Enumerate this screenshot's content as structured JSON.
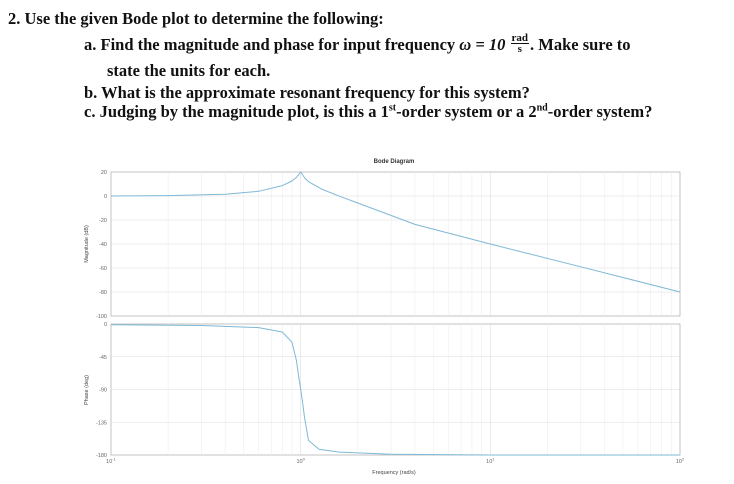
{
  "question": {
    "number": "2.",
    "prompt": "Use the given Bode plot to determine the following:",
    "a_letter": "a.",
    "a_text_before": "Find the magnitude and phase for input frequency ",
    "a_omega": "ω = 10",
    "a_unit_num": "rad",
    "a_unit_den": "s",
    "a_text_after": ". Make sure to",
    "a_text_line2": "state the units for each.",
    "b_letter": "b.",
    "b_text": "What is the approximate resonant frequency for this system?",
    "c_letter": "c.",
    "c_text_1": "Judging by the magnitude plot, is this a 1",
    "c_sup_1": "st",
    "c_text_2": "-order system or a 2",
    "c_sup_2": "nd",
    "c_text_3": "-order system?"
  },
  "chart_data": {
    "type": "line",
    "title": "Bode Diagram",
    "xlabel": "Frequency (rad/s)",
    "xscale": "log",
    "xlim": [
      0.1,
      100
    ],
    "x_tick_labels": [
      "10^-1",
      "10^0",
      "10^1",
      "10^2"
    ],
    "grid": true,
    "line_color": "#7fb8d6",
    "magnitude": {
      "ylabel": "Magnitude (dB)",
      "ylim": [
        -100,
        20
      ],
      "y_ticks": [
        20,
        0,
        -20,
        -40,
        -60,
        -80,
        -100
      ],
      "x": [
        0.1,
        0.2,
        0.4,
        0.6,
        0.8,
        0.9,
        0.95,
        1.0,
        1.05,
        1.1,
        1.3,
        1.6,
        2,
        4,
        10,
        30,
        100
      ],
      "y": [
        0,
        0.3,
        1.5,
        3.9,
        8.7,
        12.5,
        15.5,
        20,
        15,
        11.9,
        5.5,
        -0.2,
        -5.8,
        -23.7,
        -40,
        -59,
        -80
      ]
    },
    "phase": {
      "ylabel": "Phase (deg)",
      "ylim": [
        -180,
        0
      ],
      "y_ticks": [
        0,
        -45,
        -90,
        -135,
        -180
      ],
      "x": [
        0.1,
        0.3,
        0.6,
        0.8,
        0.9,
        0.95,
        0.98,
        1.0,
        1.02,
        1.05,
        1.1,
        1.25,
        1.6,
        3,
        10,
        100
      ],
      "y": [
        -1,
        -2,
        -5,
        -11,
        -25,
        -50,
        -75,
        -90,
        -105,
        -130,
        -160,
        -172,
        -176,
        -179,
        -180,
        -180
      ]
    }
  }
}
